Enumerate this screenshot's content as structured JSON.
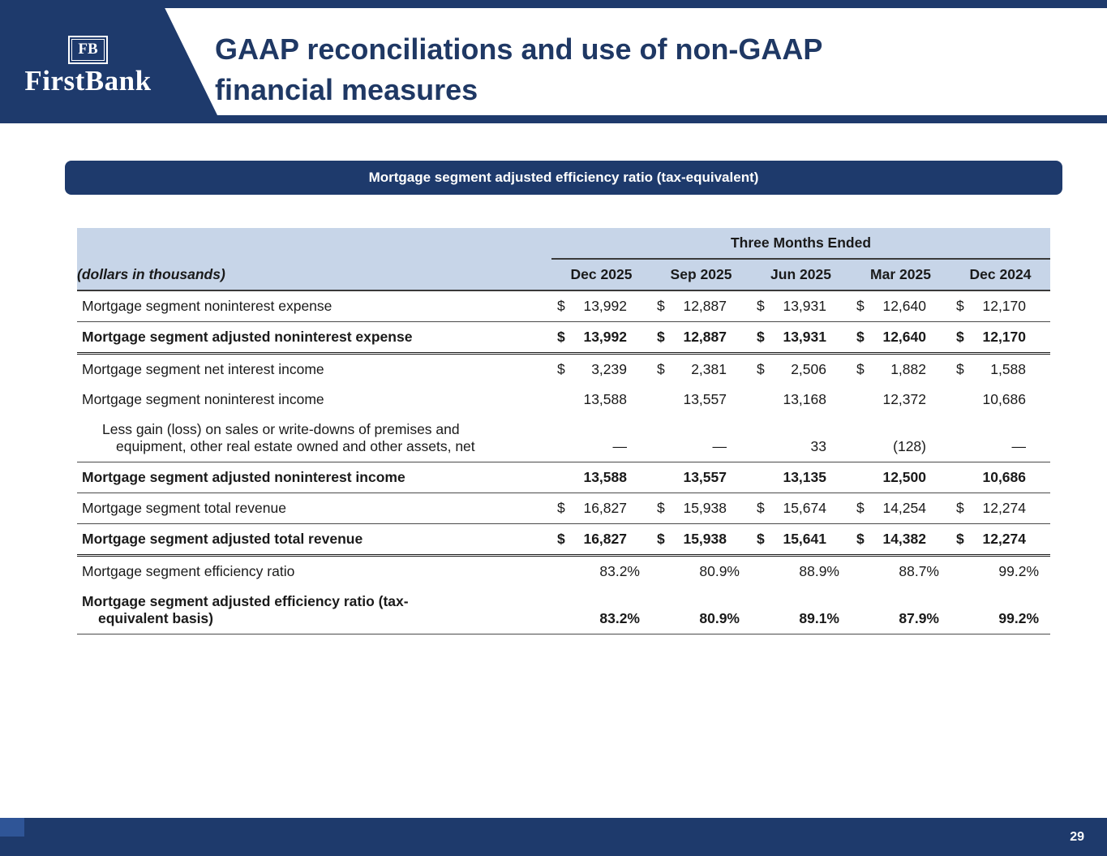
{
  "colors": {
    "navy": "#1E3A6C",
    "title_navy": "#1F3864",
    "header_blue": "#C7D5E8",
    "accent_blue": "#2F5597",
    "line_dark": "#3A3A3A",
    "text": "#1A1A1A"
  },
  "slide": {
    "logo": {
      "monogram": "FB",
      "name": "FirstBank"
    },
    "title_line1": "GAAP reconciliations and use of non-GAAP",
    "title_line2": "financial measures",
    "banner": "Mortgage segment adjusted efficiency ratio (tax-equivalent)",
    "page_number": "29"
  },
  "table": {
    "group_header": "Three Months Ended",
    "corner_label": "(dollars in thousands)",
    "columns": [
      "Dec 2025",
      "Sep 2025",
      "Jun 2025",
      "Mar 2025",
      "Dec 2024"
    ],
    "rows": [
      {
        "label": "Mortgage segment noninterest expense",
        "bold": false,
        "dollar": true,
        "border": "single",
        "values": [
          "13,992",
          "12,887",
          "13,931",
          "12,640",
          "12,170"
        ]
      },
      {
        "label": "Mortgage segment adjusted noninterest expense",
        "bold": true,
        "dollar": true,
        "border": "double",
        "values": [
          "13,992",
          "12,887",
          "13,931",
          "12,640",
          "12,170"
        ]
      },
      {
        "label": "Mortgage segment net interest income",
        "bold": false,
        "dollar": true,
        "border": "none",
        "values": [
          "3,239",
          "2,381",
          "2,506",
          "1,882",
          "1,588"
        ]
      },
      {
        "label": "Mortgage segment noninterest income",
        "bold": false,
        "dollar": false,
        "border": "none",
        "values": [
          "13,588",
          "13,557",
          "13,168",
          "12,372",
          "10,686"
        ]
      },
      {
        "label": "Less gain (loss) on sales or write-downs of premises and\nequipment, other real estate owned and other assets, net",
        "bold": false,
        "dollar": false,
        "border": "single",
        "hang": 2,
        "values": [
          "—",
          "—",
          "33",
          "(128)",
          "—"
        ]
      },
      {
        "label": "Mortgage segment adjusted noninterest income",
        "bold": true,
        "dollar": false,
        "border": "single",
        "values": [
          "13,588",
          "13,557",
          "13,135",
          "12,500",
          "10,686"
        ]
      },
      {
        "label": "Mortgage segment total revenue",
        "bold": false,
        "dollar": true,
        "border": "single",
        "values": [
          "16,827",
          "15,938",
          "15,674",
          "14,254",
          "12,274"
        ]
      },
      {
        "label": "Mortgage segment adjusted total revenue",
        "bold": true,
        "dollar": true,
        "border": "double",
        "values": [
          "16,827",
          "15,938",
          "15,641",
          "14,382",
          "12,274"
        ]
      },
      {
        "label": "Mortgage segment efficiency ratio",
        "bold": false,
        "dollar": false,
        "border": "none",
        "values": [
          "83.2%",
          "80.9%",
          "88.9%",
          "88.7%",
          "99.2%"
        ]
      },
      {
        "label": "Mortgage segment adjusted efficiency ratio (tax-\nequivalent basis)",
        "bold": true,
        "dollar": false,
        "border": "single",
        "hang": 1,
        "values": [
          "83.2%",
          "80.9%",
          "89.1%",
          "87.9%",
          "99.2%"
        ]
      }
    ]
  }
}
